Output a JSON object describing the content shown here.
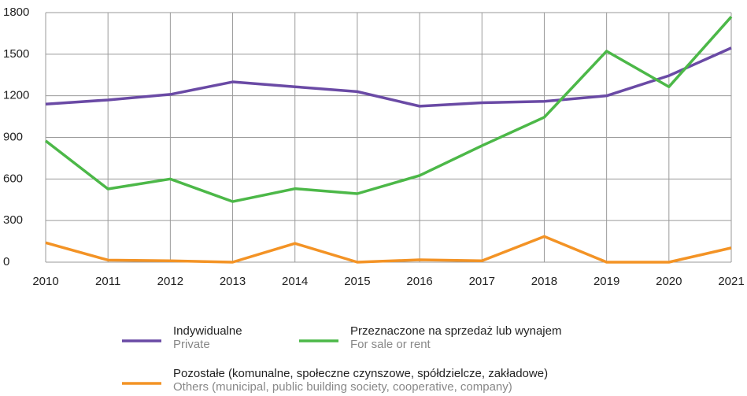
{
  "chart_data": {
    "type": "line",
    "x": [
      2010,
      2011,
      2012,
      2013,
      2014,
      2015,
      2016,
      2017,
      2018,
      2019,
      2020,
      2021
    ],
    "xlim": [
      2010,
      2021
    ],
    "xticks": [
      2010,
      2011,
      2012,
      2013,
      2014,
      2015,
      2016,
      2017,
      2018,
      2019,
      2020,
      2021
    ],
    "ylim": [
      0,
      1800
    ],
    "yticks": [
      0,
      300,
      600,
      900,
      1200,
      1500,
      1800
    ],
    "grid": true,
    "series": [
      {
        "name": "Indywidualne",
        "name_en": "Private",
        "color": "#6a4aa5",
        "values": [
          1140,
          1170,
          1210,
          1300,
          1265,
          1230,
          1125,
          1150,
          1160,
          1200,
          1345,
          1545
        ]
      },
      {
        "name": "Przeznaczone na sprzedaż lub wynajem",
        "name_en": "For sale or rent",
        "color": "#4cb848",
        "values": [
          875,
          528,
          600,
          437,
          530,
          494,
          625,
          840,
          1045,
          1522,
          1265,
          1770
        ]
      },
      {
        "name": "Pozostałe (komunalne, społeczne czynszowe, spółdzielcze, zakładowe)",
        "name_en": "Others (municipal, public building society, cooperative, company)",
        "color": "#f39325",
        "values": [
          140,
          15,
          10,
          0,
          135,
          0,
          17,
          10,
          185,
          0,
          0,
          103
        ]
      }
    ]
  }
}
